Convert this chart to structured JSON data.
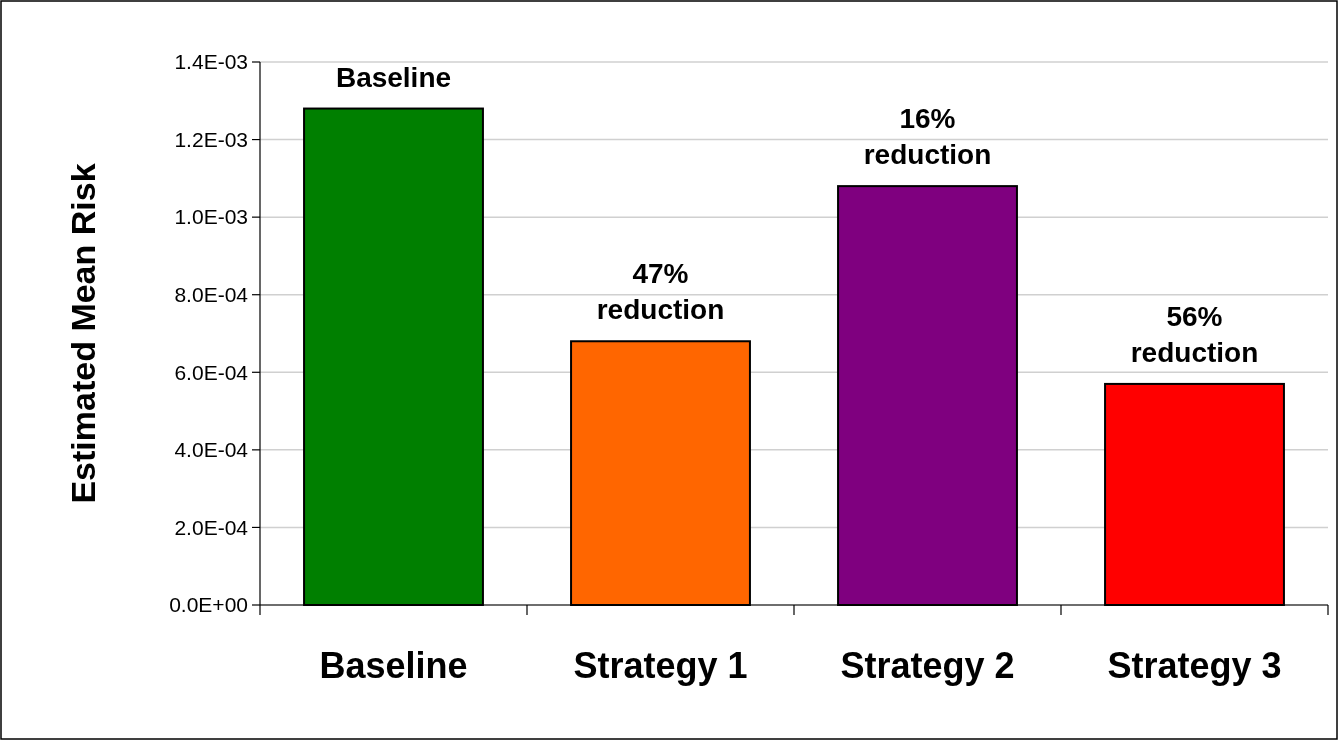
{
  "chart_data": {
    "type": "bar",
    "ylabel": "Estimated Mean Risk",
    "categories": [
      "Baseline",
      "Strategy 1",
      "Strategy 2",
      "Strategy 3"
    ],
    "values": [
      0.00128,
      0.00068,
      0.00108,
      0.00057
    ],
    "colors": [
      "#007f00",
      "#ff6600",
      "#7f007f",
      "#ff0000"
    ],
    "ylim": [
      0,
      0.0014
    ],
    "yticks": [
      {
        "value": 0,
        "label": "0.0E+00"
      },
      {
        "value": 0.0002,
        "label": "2.0E-04"
      },
      {
        "value": 0.0004,
        "label": "4.0E-04"
      },
      {
        "value": 0.0006,
        "label": "6.0E-04"
      },
      {
        "value": 0.0008,
        "label": "8.0E-04"
      },
      {
        "value": 0.001,
        "label": "1.0E-03"
      },
      {
        "value": 0.0012,
        "label": "1.2E-03"
      },
      {
        "value": 0.0014,
        "label": "1.4E-03"
      }
    ],
    "grid": "y",
    "annotations": [
      {
        "text": "Baseline",
        "x": "Baseline",
        "y": 0.00128
      },
      {
        "text": "47%\nreduction",
        "x": "Strategy 1",
        "y": 0.00068
      },
      {
        "text": "16%\nreduction",
        "x": "Strategy 2",
        "y": 0.00108
      },
      {
        "text": "56%\nreduction",
        "x": "Strategy 3",
        "y": 0.00057
      }
    ]
  }
}
